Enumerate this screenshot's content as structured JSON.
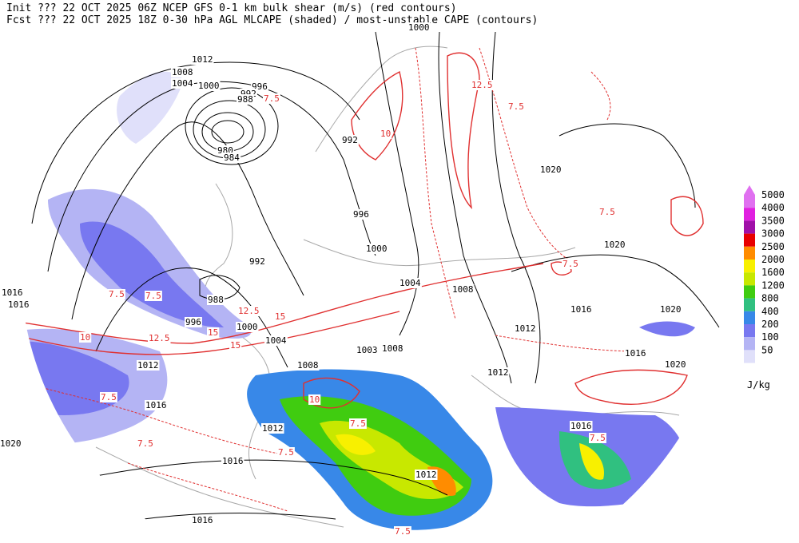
{
  "header": {
    "line1": "Init  ??? 22 OCT 2025 06Z  NCEP GFS 0-1 km bulk shear (m/s) (red contours)",
    "line2": "Fcst ??? 22 OCT 2025 18Z  0-30 hPa AGL MLCAPE (shaded) / most-unstable CAPE (contours)"
  },
  "legend": {
    "levels": [
      {
        "value": 5000,
        "color": "#e070f0"
      },
      {
        "value": 4000,
        "color": "#e020e0"
      },
      {
        "value": 3500,
        "color": "#a010a8"
      },
      {
        "value": 3000,
        "color": "#e80000"
      },
      {
        "value": 2500,
        "color": "#ff8c00"
      },
      {
        "value": 2000,
        "color": "#f8f000"
      },
      {
        "value": 1600,
        "color": "#c8e800"
      },
      {
        "value": 1200,
        "color": "#40cc10"
      },
      {
        "value": 800,
        "color": "#30c080"
      },
      {
        "value": 400,
        "color": "#3888e8"
      },
      {
        "value": 200,
        "color": "#7878f0"
      },
      {
        "value": 100,
        "color": "#b4b4f4"
      },
      {
        "value": 50,
        "color": "#e0e0fa"
      }
    ],
    "unit": "J/kg"
  },
  "isobar_labels": [
    1012,
    1008,
    1004,
    1000,
    996,
    992,
    988,
    980,
    984,
    992,
    996,
    1000,
    992,
    988,
    996,
    1000,
    1004,
    1004,
    1008,
    1012,
    1012,
    1008,
    1003,
    1008,
    1012,
    1016,
    1012,
    1016,
    1012,
    1016,
    1016,
    1020,
    1020,
    1016,
    1020,
    1016,
    1020,
    1016,
    1016,
    1020,
    1000
  ],
  "shear_labels": [
    7.5,
    7.5,
    7.5,
    7.5,
    7.5,
    7.5,
    7.5,
    7.5,
    7.5,
    7.5,
    7.5,
    7.5,
    10,
    10,
    10,
    12.5,
    12.5,
    12.5,
    15,
    15,
    15
  ]
}
